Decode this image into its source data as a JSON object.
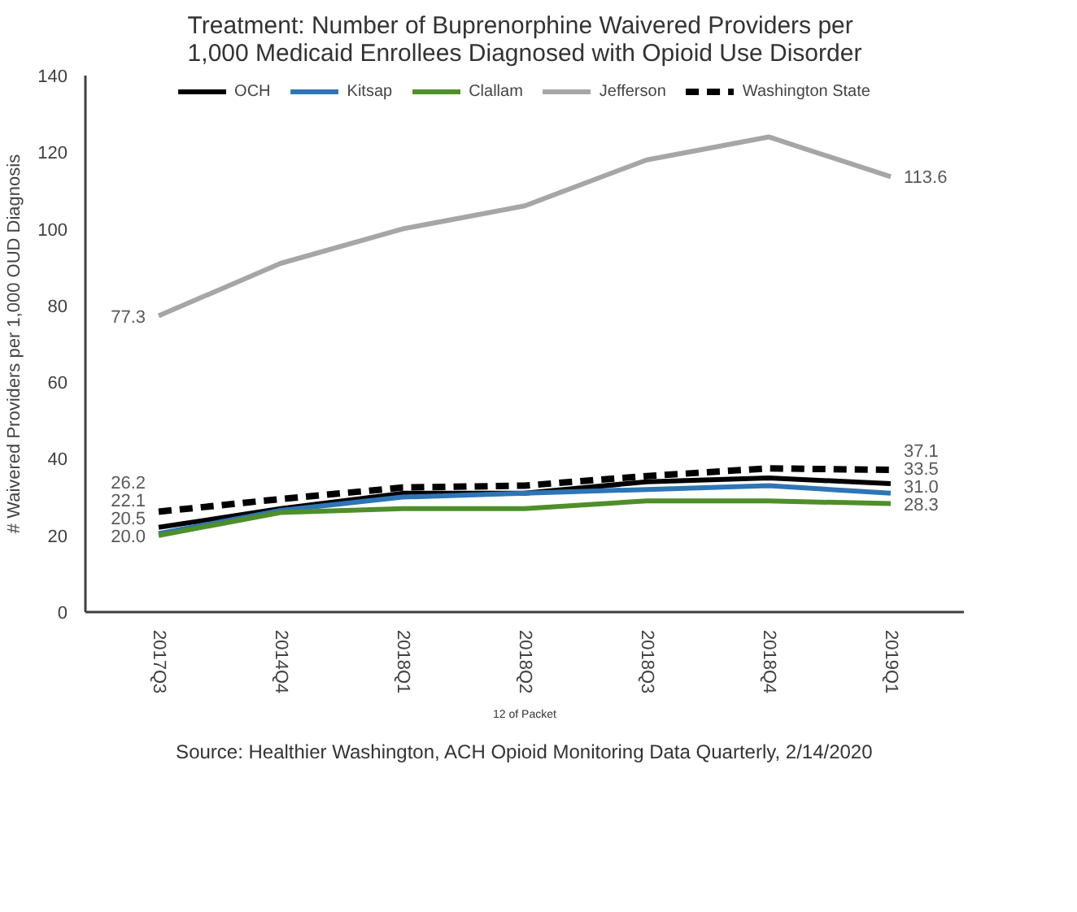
{
  "chart_data": {
    "type": "line",
    "title": "Treatment: Number of Buprenorphine Waivered Providers per 1,000 Medicaid Enrollees Diagnosed with Opioid Use Disorder",
    "ylabel": "# Waivered Providers per 1,000 OUD Diagnosis",
    "categories": [
      "2017Q3",
      "2014Q4",
      "2018Q1",
      "2018Q2",
      "2018Q3",
      "2018Q4",
      "2019Q1"
    ],
    "series": [
      {
        "name": "OCH",
        "color": "#000000",
        "values": [
          22.1,
          27,
          31,
          31,
          34,
          35,
          33.5
        ],
        "value_labels": [
          "22.1",
          null,
          null,
          null,
          null,
          null,
          "33.5"
        ]
      },
      {
        "name": "Kitsap",
        "color": "#2e75b6",
        "values": [
          20.5,
          26.5,
          30,
          31,
          32,
          33,
          31.0
        ],
        "value_labels": [
          "20.5",
          null,
          null,
          null,
          null,
          null,
          "31.0"
        ]
      },
      {
        "name": "Clallam",
        "color": "#4e8f2a",
        "values": [
          20.0,
          26,
          27,
          27,
          29,
          29,
          28.3
        ],
        "value_labels": [
          "20.0",
          null,
          null,
          null,
          null,
          null,
          "28.3"
        ]
      },
      {
        "name": "Jefferson",
        "color": "#a6a6a6",
        "values": [
          77.3,
          91,
          100,
          106,
          118,
          124,
          113.6
        ],
        "value_labels": [
          "77.3",
          null,
          null,
          null,
          null,
          null,
          "113.6"
        ]
      },
      {
        "name": "Washington State",
        "color": "#000000",
        "line_style": "dashed",
        "values": [
          26.2,
          29.5,
          32.5,
          33,
          35.5,
          37.5,
          37.1
        ],
        "value_labels": [
          "26.2",
          null,
          null,
          null,
          null,
          null,
          "37.1"
        ]
      }
    ],
    "ylim": [
      0,
      140
    ],
    "yticks": [
      0,
      20,
      40,
      60,
      80,
      100,
      120,
      140
    ],
    "grid": false,
    "legend": "top",
    "marker": "none",
    "annotations": [
      "12 of Packet",
      "Source: Healthier Washington, ACH Opioid Monitoring Data Quarterly, 2/14/2020"
    ]
  }
}
